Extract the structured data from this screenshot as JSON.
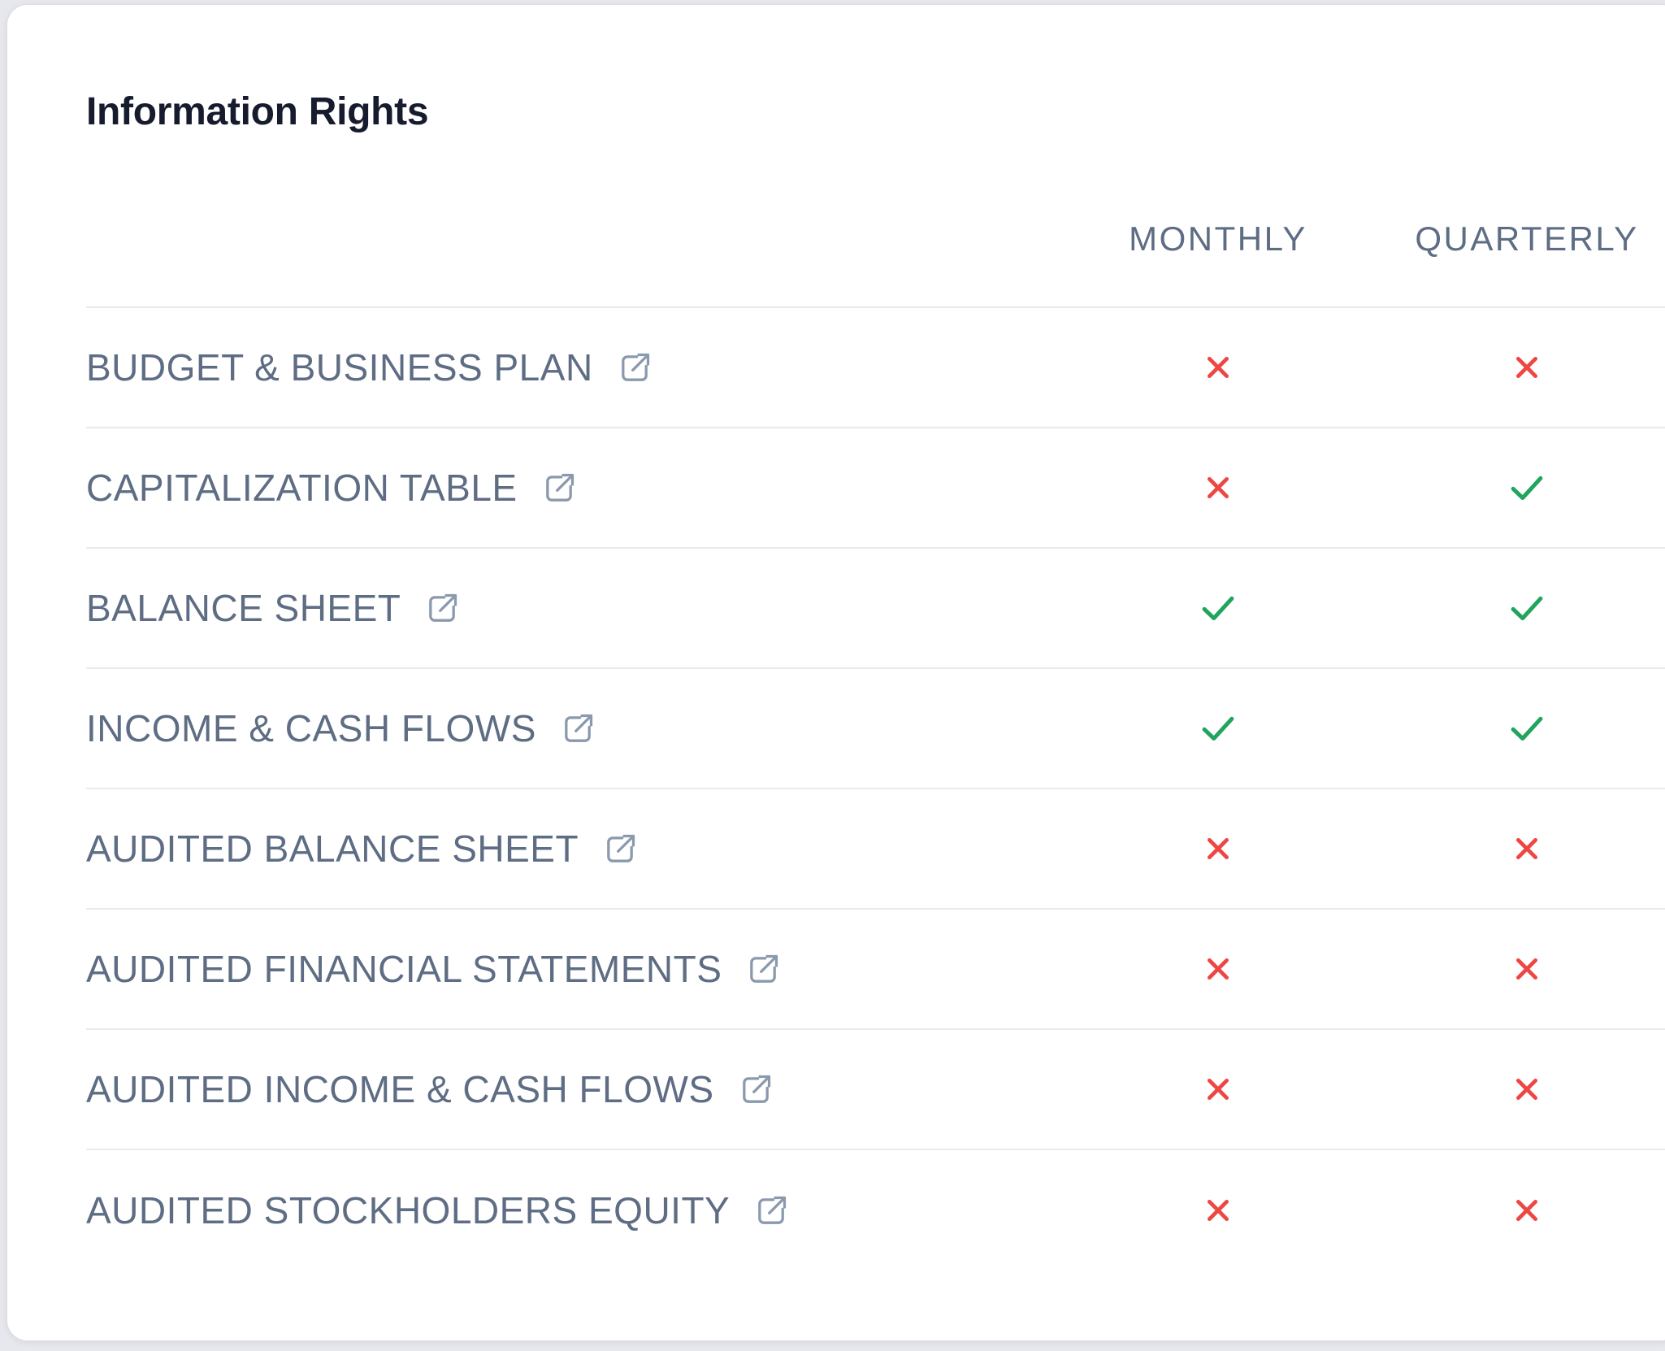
{
  "card": {
    "title": "Information Rights"
  },
  "table": {
    "columns": [
      "MONTHLY",
      "QUARTERLY"
    ],
    "rows": [
      {
        "label": "BUDGET & BUSINESS PLAN",
        "monthly": false,
        "quarterly": false
      },
      {
        "label": "CAPITALIZATION TABLE",
        "monthly": false,
        "quarterly": true
      },
      {
        "label": "BALANCE SHEET",
        "monthly": true,
        "quarterly": true
      },
      {
        "label": "INCOME & CASH FLOWS",
        "monthly": true,
        "quarterly": true
      },
      {
        "label": "AUDITED BALANCE SHEET",
        "monthly": false,
        "quarterly": false
      },
      {
        "label": "AUDITED FINANCIAL STATEMENTS",
        "monthly": false,
        "quarterly": false
      },
      {
        "label": "AUDITED INCOME & CASH FLOWS",
        "monthly": false,
        "quarterly": false
      },
      {
        "label": "AUDITED STOCKHOLDERS EQUITY",
        "monthly": false,
        "quarterly": false
      }
    ]
  },
  "colors": {
    "check_green": "#21a45d",
    "cross_red": "#ee4743",
    "label_slate": "#5e6d84",
    "title_dark": "#161c2d",
    "divider": "#e8eaef",
    "icon_slate": "#8a99ad",
    "page_background": "#e7e8ed",
    "card_background": "#ffffff"
  },
  "icons": {
    "external_link": "external-link-icon",
    "granted": "check-icon",
    "denied": "x-icon"
  }
}
